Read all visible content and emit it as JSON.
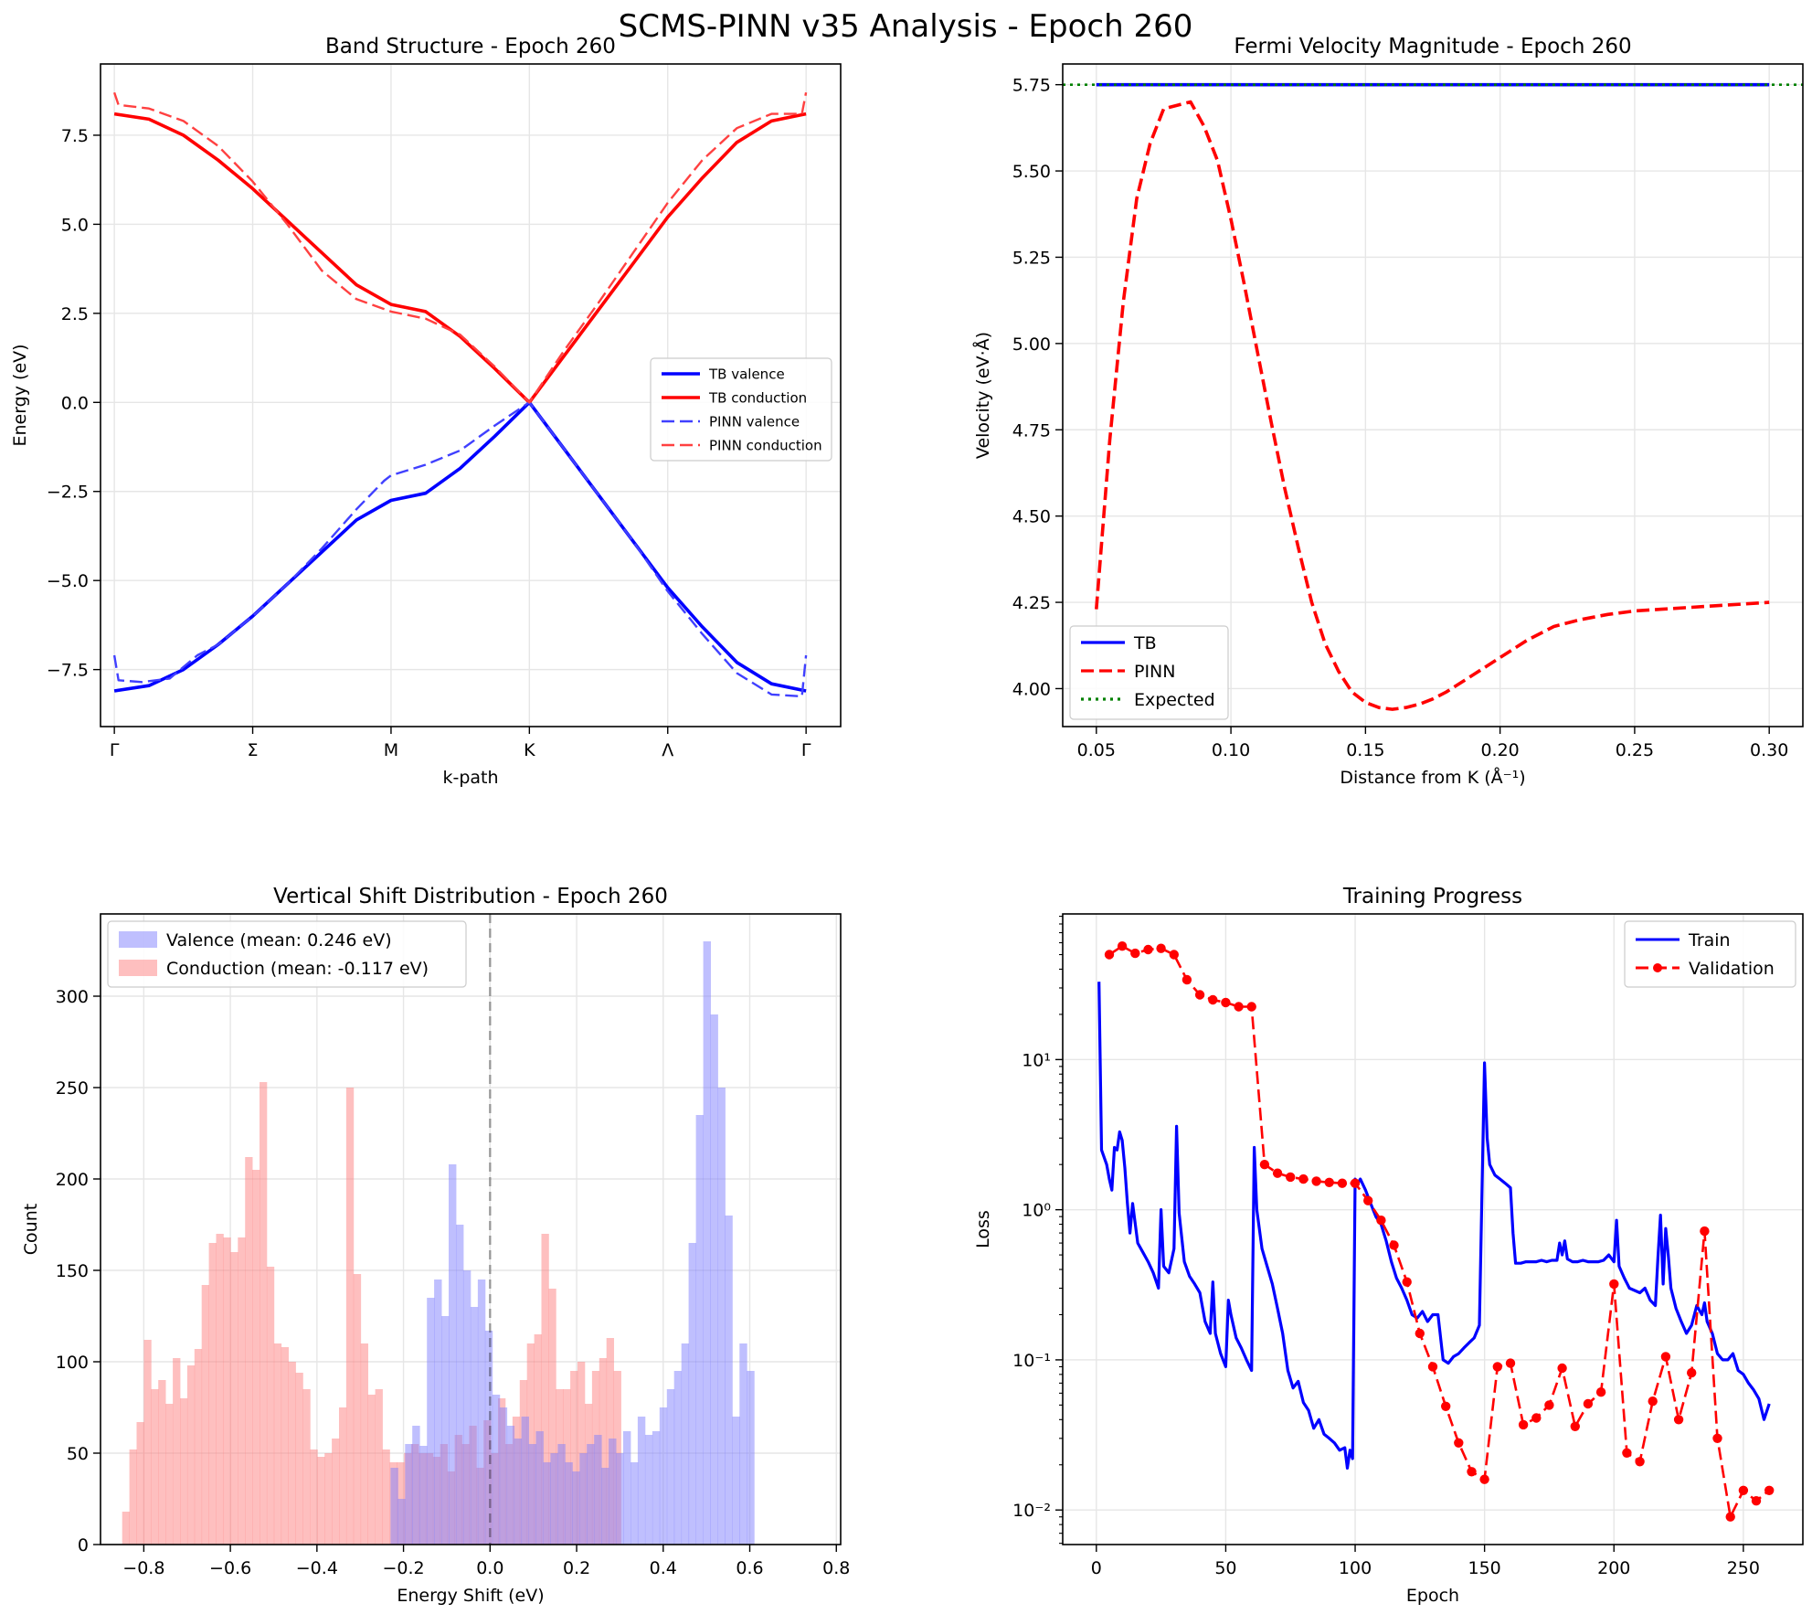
{
  "suptitle": "SCMS-PINN v35 Analysis - Epoch 260",
  "colors": {
    "blue": "#0000ff",
    "red": "#ff0000",
    "green": "#008000",
    "grid": "#e6e6e6",
    "dash_gray": "#a0a0a0",
    "hist_blue": "#7f7ffe",
    "hist_red": "#fe7f7f",
    "hist_overlap": "#c5397b"
  },
  "chart_data": [
    {
      "id": "band",
      "type": "line",
      "title": "Band Structure - Epoch 260",
      "xlabel": "k-path",
      "ylabel": "Energy (eV)",
      "xlim": [
        -0.1,
        5.25
      ],
      "ylim": [
        -9.1,
        9.5
      ],
      "yticks": [
        -7.5,
        -5.0,
        -2.5,
        0.0,
        2.5,
        5.0,
        7.5
      ],
      "ytick_labels": [
        "−7.5",
        "−5.0",
        "−2.5",
        "0.0",
        "2.5",
        "5.0",
        "7.5"
      ],
      "xtick_positions": [
        0,
        1,
        2,
        3,
        4,
        5
      ],
      "xtick_labels": [
        "Γ",
        "Σ",
        "M",
        "K",
        "Λ",
        "Γ"
      ],
      "series": [
        {
          "name": "TB valence",
          "style": "solid",
          "color": "#0000ff",
          "x": [
            0,
            0.25,
            0.5,
            0.75,
            1.0,
            1.25,
            1.5,
            1.75,
            2.0,
            2.25,
            2.5,
            2.75,
            3.0,
            3.25,
            3.5,
            3.75,
            4.0,
            4.25,
            4.5,
            4.75,
            5.0
          ],
          "y": [
            -8.1,
            -7.95,
            -7.5,
            -6.8,
            -6.0,
            -5.1,
            -4.2,
            -3.3,
            -2.75,
            -2.55,
            -1.85,
            -0.95,
            0.0,
            -1.3,
            -2.6,
            -3.9,
            -5.2,
            -6.3,
            -7.3,
            -7.9,
            -8.1
          ]
        },
        {
          "name": "TB conduction",
          "style": "solid",
          "color": "#ff0000",
          "x": [
            0,
            0.25,
            0.5,
            0.75,
            1.0,
            1.25,
            1.5,
            1.75,
            2.0,
            2.25,
            2.5,
            2.75,
            3.0,
            3.25,
            3.5,
            3.75,
            4.0,
            4.25,
            4.5,
            4.75,
            5.0
          ],
          "y": [
            8.1,
            7.95,
            7.5,
            6.8,
            6.0,
            5.1,
            4.2,
            3.3,
            2.75,
            2.55,
            1.85,
            0.95,
            0.0,
            1.3,
            2.6,
            3.9,
            5.2,
            6.3,
            7.3,
            7.9,
            8.1
          ]
        },
        {
          "name": "PINN valence",
          "style": "dashed",
          "color": "#4040ff",
          "x": [
            0,
            0.03,
            0.2,
            0.4,
            0.6,
            0.75,
            1.0,
            1.25,
            1.5,
            1.75,
            1.95,
            2.0,
            2.25,
            2.5,
            2.75,
            3.0,
            3.25,
            3.5,
            3.75,
            4.0,
            4.25,
            4.5,
            4.75,
            4.97,
            5.0
          ],
          "y": [
            -7.1,
            -7.8,
            -7.85,
            -7.75,
            -7.1,
            -6.8,
            -6.0,
            -5.1,
            -4.1,
            -3.0,
            -2.2,
            -2.05,
            -1.75,
            -1.35,
            -0.65,
            0.0,
            -1.3,
            -2.6,
            -3.9,
            -5.3,
            -6.5,
            -7.6,
            -8.2,
            -8.25,
            -7.1
          ]
        },
        {
          "name": "PINN conduction",
          "style": "dashed",
          "color": "#ff4040",
          "x": [
            0,
            0.03,
            0.25,
            0.5,
            0.75,
            1.0,
            1.25,
            1.5,
            1.75,
            2.0,
            2.25,
            2.5,
            2.75,
            3.0,
            3.25,
            3.5,
            3.75,
            4.0,
            4.25,
            4.5,
            4.75,
            4.97,
            5.0
          ],
          "y": [
            8.7,
            8.35,
            8.25,
            7.9,
            7.2,
            6.2,
            5.0,
            3.7,
            2.9,
            2.55,
            2.35,
            1.9,
            1.0,
            0.0,
            1.45,
            2.8,
            4.2,
            5.6,
            6.8,
            7.7,
            8.1,
            8.1,
            8.7
          ]
        }
      ],
      "legend": {
        "position": "center-right",
        "labels": [
          "TB valence",
          "TB conduction",
          "PINN valence",
          "PINN conduction"
        ]
      }
    },
    {
      "id": "fermi",
      "type": "line",
      "title": "Fermi Velocity Magnitude - Epoch 260",
      "xlabel": "Distance from K (Å⁻¹)",
      "ylabel": "Velocity (eV·Å)",
      "xlim": [
        0.0375,
        0.3125
      ],
      "ylim": [
        3.89,
        5.81
      ],
      "xticks": [
        0.05,
        0.1,
        0.15,
        0.2,
        0.25,
        0.3
      ],
      "xtick_labels": [
        "0.05",
        "0.10",
        "0.15",
        "0.20",
        "0.25",
        "0.30"
      ],
      "yticks": [
        4.0,
        4.25,
        4.5,
        4.75,
        5.0,
        5.25,
        5.5,
        5.75
      ],
      "ytick_labels": [
        "4.00",
        "4.25",
        "4.50",
        "4.75",
        "5.00",
        "5.25",
        "5.50",
        "5.75"
      ],
      "series": [
        {
          "name": "TB",
          "style": "solid",
          "color": "#0000ff",
          "x": [
            0.05,
            0.3
          ],
          "y": [
            5.75,
            5.75
          ]
        },
        {
          "name": "PINN",
          "style": "dashed",
          "color": "#ff0000",
          "x": [
            0.05,
            0.055,
            0.06,
            0.065,
            0.07,
            0.075,
            0.08,
            0.085,
            0.09,
            0.095,
            0.1,
            0.105,
            0.11,
            0.115,
            0.12,
            0.125,
            0.13,
            0.135,
            0.14,
            0.145,
            0.15,
            0.155,
            0.16,
            0.165,
            0.17,
            0.175,
            0.18,
            0.19,
            0.2,
            0.21,
            0.22,
            0.23,
            0.24,
            0.25,
            0.26,
            0.27,
            0.28,
            0.29,
            0.3
          ],
          "y": [
            4.23,
            4.72,
            5.12,
            5.42,
            5.58,
            5.68,
            5.69,
            5.7,
            5.63,
            5.53,
            5.36,
            5.17,
            4.97,
            4.77,
            4.58,
            4.41,
            4.25,
            4.13,
            4.05,
            3.99,
            3.96,
            3.945,
            3.94,
            3.945,
            3.955,
            3.97,
            3.99,
            4.04,
            4.09,
            4.14,
            4.18,
            4.2,
            4.215,
            4.225,
            4.23,
            4.235,
            4.24,
            4.245,
            4.25
          ]
        },
        {
          "name": "Expected",
          "style": "dotted",
          "color": "#008000",
          "x": [
            0.0375,
            0.3125
          ],
          "y": [
            5.75,
            5.75
          ]
        }
      ],
      "legend": {
        "position": "lower-left",
        "labels": [
          "TB",
          "PINN",
          "Expected"
        ]
      }
    },
    {
      "id": "hist",
      "type": "bar",
      "title": "Vertical Shift Distribution - Epoch 260",
      "xlabel": "Energy Shift (eV)",
      "ylabel": "Count",
      "xlim": [
        -0.9,
        0.81
      ],
      "ylim": [
        0,
        345
      ],
      "xticks": [
        -0.8,
        -0.6,
        -0.4,
        -0.2,
        0.0,
        0.2,
        0.4,
        0.6,
        0.8
      ],
      "xtick_labels": [
        "−0.8",
        "−0.6",
        "−0.4",
        "−0.2",
        "0.0",
        "0.2",
        "0.4",
        "0.6",
        "0.8"
      ],
      "yticks": [
        0,
        50,
        100,
        150,
        200,
        250,
        300
      ],
      "ytick_labels": [
        "0",
        "50",
        "100",
        "150",
        "200",
        "250",
        "300"
      ],
      "vline": 0.0,
      "series": [
        {
          "name": "Valence (mean: 0.246 eV)",
          "color": "#7f7ffe",
          "x0": -0.23,
          "bin_width": 0.0168,
          "counts": [
            42,
            25,
            55,
            65,
            54,
            135,
            145,
            125,
            208,
            175,
            150,
            130,
            145,
            117,
            82,
            75,
            65,
            58,
            70,
            55,
            62,
            45,
            50,
            55,
            45,
            40,
            50,
            55,
            60,
            42,
            58,
            50,
            62,
            45,
            70,
            60,
            62,
            75,
            85,
            95,
            110,
            165,
            235,
            330,
            290,
            250,
            180,
            70,
            110,
            95
          ]
        },
        {
          "name": "Conduction (mean: -0.117 eV)",
          "color": "#fe7f7f",
          "x0": -0.85,
          "bin_width": 0.0167,
          "counts": [
            18,
            52,
            67,
            112,
            85,
            90,
            77,
            102,
            80,
            98,
            107,
            142,
            165,
            170,
            168,
            160,
            168,
            212,
            205,
            253,
            152,
            110,
            108,
            100,
            94,
            85,
            52,
            48,
            50,
            58,
            75,
            250,
            148,
            110,
            82,
            85,
            52,
            45,
            45,
            50,
            55,
            50,
            50,
            48,
            55,
            40,
            60,
            55,
            65,
            42,
            68,
            50,
            80,
            55,
            70,
            90,
            110,
            115,
            170,
            140,
            85,
            85,
            95,
            100,
            77,
            95,
            102,
            113,
            95
          ]
        }
      ],
      "legend": {
        "position": "upper-left",
        "labels": [
          "Valence (mean: 0.246 eV)",
          "Conduction (mean: -0.117 eV)"
        ]
      }
    },
    {
      "id": "training",
      "type": "line",
      "title": "Training Progress",
      "xlabel": "Epoch",
      "ylabel": "Loss",
      "yscale": "log",
      "xlim": [
        -13,
        273
      ],
      "ylim_log10": [
        -2.23,
        1.97
      ],
      "xticks": [
        0,
        50,
        100,
        150,
        200,
        250
      ],
      "xtick_labels": [
        "0",
        "50",
        "100",
        "150",
        "200",
        "250"
      ],
      "yticks_log10": [
        -2,
        -1,
        0,
        1
      ],
      "ytick_labels": [
        "10⁻²",
        "10⁻¹",
        "10⁰",
        "10¹"
      ],
      "series": [
        {
          "name": "Train",
          "style": "solid",
          "color": "#0000ff",
          "x": [
            1,
            2,
            4,
            5,
            6,
            7,
            8,
            9,
            10,
            11,
            12,
            13,
            14,
            16,
            18,
            20,
            22,
            24,
            25,
            26,
            28,
            30,
            31,
            32,
            34,
            36,
            38,
            40,
            42,
            44,
            45,
            46,
            48,
            50,
            51,
            52,
            54,
            56,
            58,
            60,
            61,
            62,
            64,
            66,
            68,
            70,
            72,
            74,
            76,
            78,
            80,
            82,
            84,
            86,
            88,
            90,
            92,
            94,
            96,
            97,
            98,
            99,
            100,
            101,
            102,
            104,
            106,
            108,
            110,
            112,
            114,
            116,
            118,
            120,
            122,
            124,
            126,
            128,
            130,
            132,
            134,
            136,
            138,
            140,
            142,
            144,
            146,
            148,
            150,
            151,
            152,
            154,
            156,
            158,
            160,
            161,
            162,
            164,
            166,
            168,
            170,
            172,
            174,
            176,
            178,
            179,
            180,
            181,
            182,
            184,
            186,
            188,
            190,
            192,
            194,
            196,
            198,
            200,
            201,
            202,
            204,
            206,
            208,
            210,
            212,
            214,
            216,
            217,
            218,
            219,
            220,
            221,
            222,
            224,
            226,
            228,
            230,
            232,
            234,
            235,
            236,
            238,
            240,
            242,
            244,
            246,
            248,
            250,
            252,
            254,
            256,
            258,
            260
          ],
          "y": [
            33,
            2.5,
            2.0,
            1.6,
            1.35,
            2.6,
            2.5,
            3.3,
            2.9,
            1.9,
            1.1,
            0.7,
            1.1,
            0.6,
            0.52,
            0.45,
            0.38,
            0.3,
            1.0,
            0.42,
            0.38,
            0.55,
            3.6,
            0.95,
            0.45,
            0.36,
            0.32,
            0.28,
            0.18,
            0.15,
            0.33,
            0.15,
            0.11,
            0.09,
            0.25,
            0.2,
            0.14,
            0.12,
            0.1,
            0.085,
            2.6,
            1.0,
            0.55,
            0.42,
            0.32,
            0.22,
            0.15,
            0.085,
            0.065,
            0.072,
            0.052,
            0.046,
            0.035,
            0.04,
            0.032,
            0.03,
            0.028,
            0.025,
            0.026,
            0.019,
            0.025,
            0.022,
            1.6,
            1.5,
            1.6,
            1.35,
            1.1,
            0.9,
            0.8,
            0.62,
            0.45,
            0.35,
            0.3,
            0.25,
            0.2,
            0.19,
            0.21,
            0.18,
            0.2,
            0.2,
            0.1,
            0.095,
            0.105,
            0.11,
            0.12,
            0.13,
            0.14,
            0.17,
            9.5,
            3.0,
            2.0,
            1.7,
            1.6,
            1.5,
            1.4,
            0.7,
            0.44,
            0.44,
            0.45,
            0.45,
            0.45,
            0.46,
            0.45,
            0.46,
            0.46,
            0.6,
            0.5,
            0.62,
            0.47,
            0.45,
            0.45,
            0.46,
            0.45,
            0.45,
            0.45,
            0.46,
            0.5,
            0.45,
            0.85,
            0.42,
            0.35,
            0.3,
            0.29,
            0.28,
            0.3,
            0.25,
            0.23,
            0.48,
            0.92,
            0.32,
            0.75,
            0.5,
            0.3,
            0.22,
            0.18,
            0.15,
            0.17,
            0.23,
            0.2,
            0.24,
            0.18,
            0.15,
            0.11,
            0.1,
            0.1,
            0.11,
            0.085,
            0.08,
            0.07,
            0.063,
            0.055,
            0.04,
            0.051
          ]
        },
        {
          "name": "Validation",
          "style": "dashed-markers",
          "color": "#ff0000",
          "x": [
            5,
            10,
            15,
            20,
            25,
            30,
            35,
            40,
            45,
            50,
            55,
            60,
            65,
            70,
            75,
            80,
            85,
            90,
            95,
            100,
            105,
            110,
            115,
            120,
            125,
            130,
            135,
            140,
            145,
            150,
            155,
            160,
            165,
            170,
            175,
            180,
            185,
            190,
            195,
            200,
            205,
            210,
            215,
            220,
            225,
            230,
            235,
            240,
            245,
            250,
            255,
            260
          ],
          "y": [
            50,
            57,
            51,
            54,
            55,
            50,
            34,
            27,
            25,
            24,
            22.5,
            22.5,
            2.0,
            1.75,
            1.65,
            1.6,
            1.55,
            1.52,
            1.5,
            1.5,
            1.15,
            0.85,
            0.58,
            0.33,
            0.15,
            0.09,
            0.049,
            0.028,
            0.018,
            0.016,
            0.09,
            0.095,
            0.037,
            0.041,
            0.05,
            0.088,
            0.036,
            0.051,
            0.061,
            0.32,
            0.024,
            0.021,
            0.053,
            0.105,
            0.04,
            0.082,
            0.72,
            0.03,
            0.009,
            0.0135,
            0.0115,
            0.0135
          ]
        }
      ],
      "legend": {
        "position": "upper-right",
        "labels": [
          "Train",
          "Validation"
        ]
      }
    }
  ]
}
